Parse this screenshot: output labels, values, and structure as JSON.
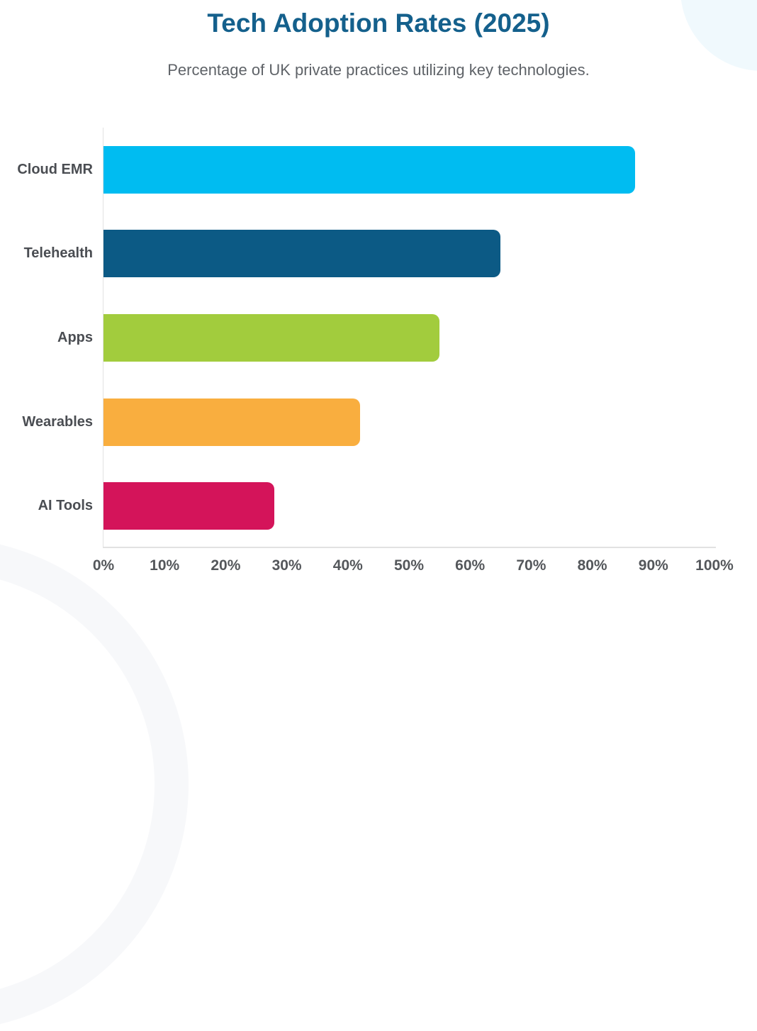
{
  "page": {
    "title": "Tech Adoption Rates (2025)",
    "subtitle": "Percentage of UK private practices utilizing key technologies."
  },
  "colors": {
    "title": "#14608C",
    "subtitle": "#5F6368",
    "axis_line": "#E2E2E2",
    "tick_label": "#54575B",
    "category_label": "#4A4D52",
    "decor_top_right": "#F0F9FD",
    "decor_bottom_left": "#F7F8FA"
  },
  "chart_data": {
    "type": "bar",
    "orientation": "horizontal",
    "title": "Tech Adoption Rates (2025)",
    "subtitle": "Percentage of UK private practices utilizing key technologies.",
    "categories": [
      "Cloud EMR",
      "Telehealth",
      "Apps",
      "Wearables",
      "AI Tools"
    ],
    "values": [
      87,
      65,
      55,
      42,
      28
    ],
    "unit": "%",
    "bar_colors": [
      "#00BCF1",
      "#0C5A85",
      "#A2CC3D",
      "#F9AE3F",
      "#D4145A"
    ],
    "xlim": [
      0,
      100
    ],
    "x_tick_labels": [
      "0%",
      "10%",
      "20%",
      "30%",
      "40%",
      "50%",
      "60%",
      "70%",
      "80%",
      "90%",
      "100%"
    ],
    "xlabel": "",
    "ylabel": "",
    "grid": false,
    "legend": false,
    "bar_corner_style": "rounded-right"
  }
}
